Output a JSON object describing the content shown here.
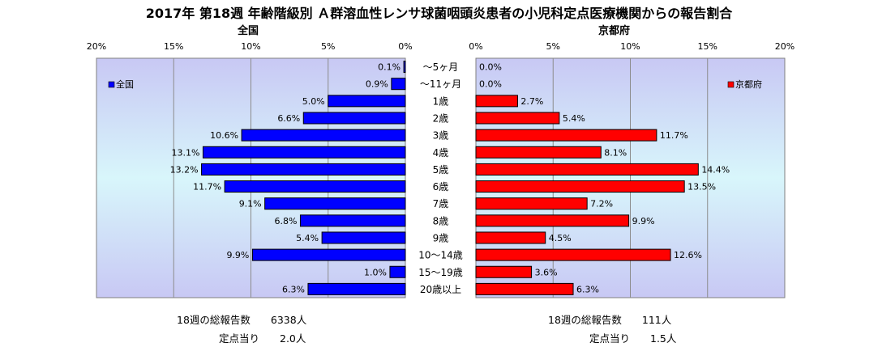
{
  "title": "2017年 第18週 年齢階級別 Ａ群溶血性レンサ球菌咽頭炎患者の小児科定点医療機関からの報告割合",
  "chart_data": [
    {
      "type": "bar",
      "orientation": "horizontal",
      "direction": "leftward",
      "title": "全国",
      "legend": "全国",
      "legend_position": "top-left",
      "color": "#0000ff",
      "xlim": [
        0,
        20
      ],
      "ticks": [
        "20%",
        "15%",
        "10%",
        "5%",
        "0%"
      ],
      "tick_values": [
        20,
        15,
        10,
        5,
        0
      ],
      "grid": true,
      "values": [
        0.1,
        0.9,
        5.0,
        6.6,
        10.6,
        13.1,
        13.2,
        11.7,
        9.1,
        6.8,
        5.4,
        9.9,
        1.0,
        6.3
      ],
      "labels": [
        "0.1%",
        "0.9%",
        "5.0%",
        "6.6%",
        "10.6%",
        "13.1%",
        "13.2%",
        "11.7%",
        "9.1%",
        "6.8%",
        "5.4%",
        "9.9%",
        "1.0%",
        "6.3%"
      ]
    },
    {
      "type": "bar",
      "orientation": "horizontal",
      "direction": "rightward",
      "title": "京都府",
      "legend": "京都府",
      "legend_position": "top-right",
      "color": "#ff0000",
      "xlim": [
        0,
        20
      ],
      "ticks": [
        "0%",
        "5%",
        "10%",
        "15%",
        "20%"
      ],
      "tick_values": [
        0,
        5,
        10,
        15,
        20
      ],
      "grid": true,
      "values": [
        0.0,
        0.0,
        2.7,
        5.4,
        11.7,
        8.1,
        14.4,
        13.5,
        7.2,
        9.9,
        4.5,
        12.6,
        3.6,
        6.3
      ],
      "labels": [
        "0.0%",
        "0.0%",
        "2.7%",
        "5.4%",
        "11.7%",
        "8.1%",
        "14.4%",
        "13.5%",
        "7.2%",
        "9.9%",
        "4.5%",
        "12.6%",
        "3.6%",
        "6.3%"
      ]
    }
  ],
  "categories": [
    "～5ヶ月",
    "～11ヶ月",
    "1歳",
    "2歳",
    "3歳",
    "4歳",
    "5歳",
    "6歳",
    "7歳",
    "8歳",
    "9歳",
    "10～14歳",
    "15～19歳",
    "20歳以上"
  ],
  "summary": {
    "national": {
      "total": "18週の総報告数　　6338人",
      "per_site": "定点当り　　2.0人"
    },
    "kyoto": {
      "total": "18週の総報告数　　111人",
      "per_site": "定点当り　　1.5人"
    }
  }
}
